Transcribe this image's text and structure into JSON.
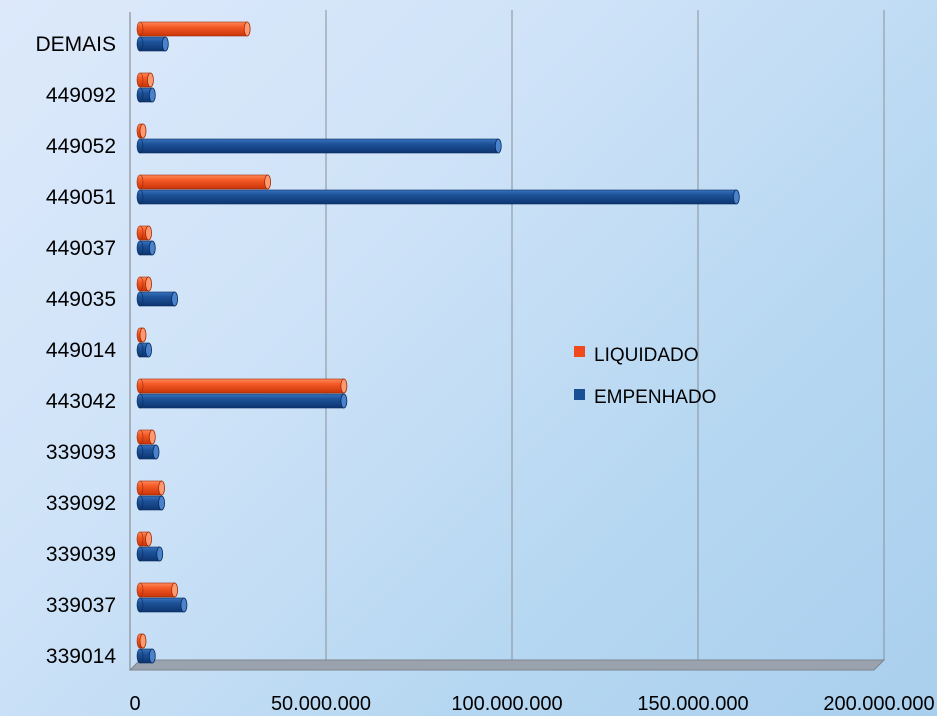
{
  "chart_data": {
    "type": "bar",
    "orientation": "horizontal",
    "categories": [
      "DEMAIS",
      "449092",
      "449052",
      "449051",
      "449037",
      "449035",
      "449014",
      "443042",
      "339093",
      "339092",
      "339039",
      "339037",
      "339014"
    ],
    "series": [
      {
        "name": "LIQUIDADO",
        "color": "#f04a1c",
        "values": [
          28000000,
          2000000,
          0,
          33500000,
          1500000,
          1500000,
          0,
          54000000,
          2500000,
          5000000,
          1500000,
          8500000,
          0
        ]
      },
      {
        "name": "EMPENHADO",
        "color": "#1a4f95",
        "values": [
          6000000,
          2500000,
          95500000,
          159500000,
          2500000,
          8500000,
          1500000,
          54000000,
          3500000,
          5000000,
          4500000,
          11000000,
          2500000
        ]
      }
    ],
    "xlim": [
      0,
      200000000
    ],
    "x_ticks": [
      0,
      50000000,
      100000000,
      150000000,
      200000000
    ],
    "x_tick_labels": [
      "0",
      "50.000.000",
      "100.000.000",
      "150.000.000",
      "200.000.000"
    ],
    "grid": true,
    "legend_position": "right",
    "title": "",
    "xlabel": "",
    "ylabel": ""
  }
}
